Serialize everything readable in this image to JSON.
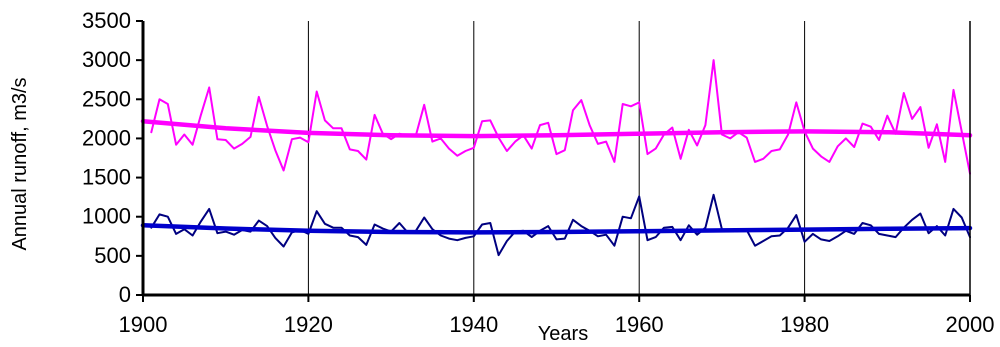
{
  "chart_data": {
    "type": "line",
    "title": "",
    "xlabel": "Years",
    "ylabel": "Annual runoff, m3/s",
    "xlim": [
      1900,
      2000
    ],
    "ylim": [
      0,
      3500
    ],
    "x_ticks": [
      1900,
      1920,
      1940,
      1960,
      1980,
      2000
    ],
    "y_ticks": [
      0,
      500,
      1000,
      1500,
      2000,
      2500,
      3000,
      3500
    ],
    "grid": "vertical gridlines at x ticks",
    "legend": "none",
    "colors": {
      "series_magenta": "#ff00ff",
      "series_navy": "#000080",
      "trend_magenta": "#ff00ff",
      "trend_blue": "#0000cc"
    },
    "series": [
      {
        "color": "#ff00ff",
        "kind": "annual",
        "x": [
          1901,
          1902,
          1903,
          1904,
          1905,
          1906,
          1907,
          1908,
          1909,
          1910,
          1911,
          1912,
          1913,
          1914,
          1915,
          1916,
          1917,
          1918,
          1919,
          1920,
          1921,
          1922,
          1923,
          1924,
          1925,
          1926,
          1927,
          1928,
          1929,
          1930,
          1931,
          1932,
          1933,
          1934,
          1935,
          1936,
          1937,
          1938,
          1939,
          1940,
          1941,
          1942,
          1943,
          1944,
          1945,
          1946,
          1947,
          1948,
          1949,
          1950,
          1951,
          1952,
          1953,
          1954,
          1955,
          1956,
          1957,
          1958,
          1959,
          1960,
          1961,
          1962,
          1963,
          1964,
          1965,
          1966,
          1967,
          1968,
          1969,
          1970,
          1971,
          1972,
          1973,
          1974,
          1975,
          1976,
          1977,
          1978,
          1979,
          1980,
          1981,
          1982,
          1983,
          1984,
          1985,
          1986,
          1987,
          1988,
          1989,
          1990,
          1991,
          1992,
          1993,
          1994,
          1995,
          1996,
          1997,
          1998,
          1999,
          2000
        ],
        "values": [
          2080,
          2500,
          2440,
          1920,
          2050,
          1920,
          2300,
          2650,
          1990,
          1980,
          1870,
          1930,
          2020,
          2530,
          2160,
          1850,
          1590,
          1990,
          2010,
          1950,
          2600,
          2230,
          2130,
          2130,
          1860,
          1840,
          1730,
          2300,
          2060,
          1990,
          2060,
          2030,
          2040,
          2430,
          1960,
          2000,
          1870,
          1780,
          1840,
          1880,
          2220,
          2230,
          2010,
          1840,
          1960,
          2040,
          1870,
          2170,
          2200,
          1800,
          1850,
          2360,
          2490,
          2170,
          1930,
          1960,
          1700,
          2440,
          2410,
          2460,
          1800,
          1870,
          2050,
          2140,
          1740,
          2110,
          1910,
          2170,
          3000,
          2050,
          2000,
          2080,
          2010,
          1700,
          1740,
          1840,
          1860,
          2050,
          2460,
          2090,
          1870,
          1770,
          1700,
          1900,
          2000,
          1890,
          2190,
          2150,
          1980,
          2290,
          2060,
          2580,
          2250,
          2400,
          1880,
          2180,
          1700,
          2620,
          2090,
          1550
        ]
      },
      {
        "color": "#000080",
        "kind": "annual",
        "x": [
          1901,
          1902,
          1903,
          1904,
          1905,
          1906,
          1907,
          1908,
          1909,
          1910,
          1911,
          1912,
          1913,
          1914,
          1915,
          1916,
          1917,
          1918,
          1919,
          1920,
          1921,
          1922,
          1923,
          1924,
          1925,
          1926,
          1927,
          1928,
          1929,
          1930,
          1931,
          1932,
          1933,
          1934,
          1935,
          1936,
          1937,
          1938,
          1939,
          1940,
          1941,
          1942,
          1943,
          1944,
          1945,
          1946,
          1947,
          1948,
          1949,
          1950,
          1951,
          1952,
          1953,
          1954,
          1955,
          1956,
          1957,
          1958,
          1959,
          1960,
          1961,
          1962,
          1963,
          1964,
          1965,
          1966,
          1967,
          1968,
          1969,
          1970,
          1971,
          1972,
          1973,
          1974,
          1975,
          1976,
          1977,
          1978,
          1979,
          1980,
          1981,
          1982,
          1983,
          1984,
          1985,
          1986,
          1987,
          1988,
          1989,
          1990,
          1991,
          1992,
          1993,
          1994,
          1995,
          1996,
          1997,
          1998,
          1999,
          2000
        ],
        "values": [
          860,
          1030,
          1000,
          780,
          840,
          760,
          940,
          1100,
          790,
          810,
          770,
          830,
          810,
          950,
          880,
          730,
          620,
          800,
          830,
          780,
          1070,
          910,
          860,
          860,
          760,
          740,
          640,
          900,
          850,
          810,
          920,
          800,
          820,
          990,
          840,
          760,
          720,
          700,
          730,
          750,
          900,
          920,
          510,
          690,
          810,
          820,
          740,
          820,
          880,
          710,
          720,
          960,
          880,
          820,
          750,
          770,
          630,
          1000,
          980,
          1260,
          700,
          740,
          860,
          870,
          700,
          890,
          770,
          860,
          1280,
          840,
          820,
          840,
          830,
          630,
          690,
          750,
          760,
          860,
          1020,
          680,
          780,
          710,
          690,
          750,
          820,
          780,
          920,
          890,
          780,
          760,
          740,
          860,
          960,
          1040,
          790,
          880,
          760,
          1100,
          990,
          740
        ]
      },
      {
        "color": "#ff00ff",
        "kind": "trend",
        "x": [
          1900,
          1910,
          1920,
          1930,
          1940,
          1950,
          1960,
          1970,
          1980,
          1990,
          2000
        ],
        "values": [
          2220,
          2130,
          2070,
          2040,
          2030,
          2040,
          2060,
          2080,
          2090,
          2080,
          2040
        ]
      },
      {
        "color": "#0000cc",
        "kind": "trend",
        "x": [
          1900,
          1910,
          1920,
          1930,
          1940,
          1950,
          1960,
          1970,
          1980,
          1990,
          2000
        ],
        "values": [
          890,
          850,
          820,
          805,
          800,
          805,
          815,
          825,
          835,
          845,
          855
        ]
      }
    ]
  }
}
